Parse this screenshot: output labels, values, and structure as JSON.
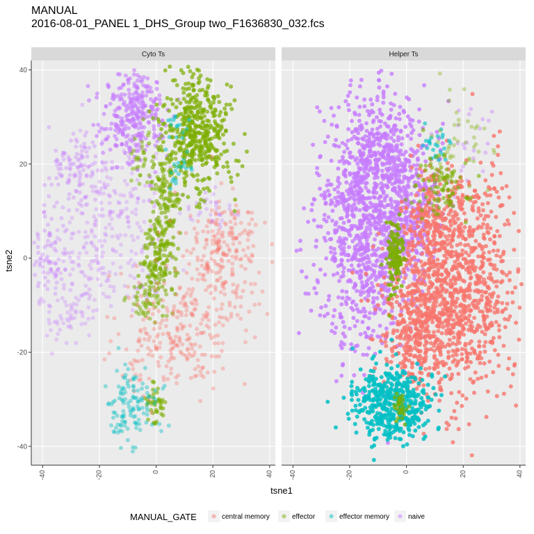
{
  "chart_data": {
    "type": "scatter",
    "title": "MANUAL",
    "subtitle": "2016-08-01_PANEL 1_DHS_Group two_F1636830_032.fcs",
    "xlabel": "tsne1",
    "ylabel": "tsne2",
    "xlim": [
      -44,
      42
    ],
    "ylim": [
      -44,
      42
    ],
    "x_ticks": [
      "-40",
      "-20",
      "0",
      "20",
      "40"
    ],
    "y_ticks": [
      "-40",
      "-20",
      "0",
      "20",
      "40"
    ],
    "grid": true,
    "legend_title": "MANUAL_GATE",
    "legend_position": "bottom",
    "series": [
      {
        "name": "central memory",
        "color": "#F8766D"
      },
      {
        "name": "effector",
        "color": "#7CAE00"
      },
      {
        "name": "effector memory",
        "color": "#00BFC4"
      },
      {
        "name": "naive",
        "color": "#C77CFF"
      }
    ],
    "panels": [
      {
        "label": "Cyto Ts",
        "clusters": [
          {
            "series": "naive",
            "cx": -8,
            "cy": 30,
            "sx": 6,
            "sy": 5,
            "n": 300,
            "alpha": 0.6
          },
          {
            "series": "naive",
            "cx": -28,
            "cy": 18,
            "sx": 5,
            "sy": 4,
            "n": 120,
            "alpha": 0.35
          },
          {
            "series": "naive",
            "cx": -38,
            "cy": 0,
            "sx": 3,
            "sy": 5,
            "n": 70,
            "alpha": 0.35
          },
          {
            "series": "naive",
            "cx": -25,
            "cy": 0,
            "sx": 6,
            "sy": 6,
            "n": 110,
            "alpha": 0.3
          },
          {
            "series": "naive",
            "cx": -30,
            "cy": -12,
            "sx": 5,
            "sy": 3,
            "n": 50,
            "alpha": 0.3
          },
          {
            "series": "naive",
            "cx": -12,
            "cy": 12,
            "sx": 7,
            "sy": 7,
            "n": 120,
            "alpha": 0.3
          },
          {
            "series": "naive",
            "cx": -5,
            "cy": -3,
            "sx": 5,
            "sy": 4,
            "n": 35,
            "alpha": 0.3
          },
          {
            "series": "naive",
            "cx": 20,
            "cy": 10,
            "sx": 5,
            "sy": 2,
            "n": 35,
            "alpha": 0.3
          },
          {
            "series": "effector",
            "cx": 14,
            "cy": 27,
            "sx": 6,
            "sy": 6,
            "n": 450,
            "alpha": 0.7
          },
          {
            "series": "effector",
            "cx": 4,
            "cy": 14,
            "sx": 2.5,
            "sy": 6,
            "n": 120,
            "alpha": 0.6
          },
          {
            "series": "effector",
            "cx": 1,
            "cy": 0,
            "sx": 3,
            "sy": 5,
            "n": 140,
            "alpha": 0.6
          },
          {
            "series": "effector",
            "cx": -4,
            "cy": -9,
            "sx": 3,
            "sy": 2,
            "n": 50,
            "alpha": 0.5
          },
          {
            "series": "effector",
            "cx": 0,
            "cy": -31,
            "sx": 2,
            "sy": 2,
            "n": 40,
            "alpha": 0.6
          },
          {
            "series": "effector",
            "cx": -5,
            "cy": 22,
            "sx": 2,
            "sy": 4,
            "n": 30,
            "alpha": 0.5
          },
          {
            "series": "central memory",
            "cx": 22,
            "cy": -2,
            "sx": 8,
            "sy": 7,
            "n": 200,
            "alpha": 0.35
          },
          {
            "series": "central memory",
            "cx": 5,
            "cy": -17,
            "sx": 10,
            "sy": 6,
            "n": 220,
            "alpha": 0.35
          },
          {
            "series": "central memory",
            "cx": 25,
            "cy": 6,
            "sx": 6,
            "sy": 3,
            "n": 60,
            "alpha": 0.35
          },
          {
            "series": "effector memory",
            "cx": -8,
            "cy": -31,
            "sx": 5,
            "sy": 4,
            "n": 120,
            "alpha": 0.4
          },
          {
            "series": "effector memory",
            "cx": 8,
            "cy": 28,
            "sx": 2,
            "sy": 1.5,
            "n": 15,
            "alpha": 0.5
          },
          {
            "series": "effector memory",
            "cx": 8,
            "cy": 19,
            "sx": 3,
            "sy": 2,
            "n": 20,
            "alpha": 0.5
          }
        ]
      },
      {
        "label": "Helper Ts",
        "clusters": [
          {
            "series": "naive",
            "cx": -14,
            "cy": 5,
            "sx": 9,
            "sy": 12,
            "n": 900,
            "alpha": 0.8
          },
          {
            "series": "naive",
            "cx": -9,
            "cy": 24,
            "sx": 7,
            "sy": 7,
            "n": 300,
            "alpha": 0.8
          },
          {
            "series": "naive",
            "cx": 2,
            "cy": 10,
            "sx": 5,
            "sy": 7,
            "n": 250,
            "alpha": 0.8
          },
          {
            "series": "naive",
            "cx": 21,
            "cy": 23,
            "sx": 5,
            "sy": 5,
            "n": 25,
            "alpha": 0.4
          },
          {
            "series": "central memory",
            "cx": 18,
            "cy": -6,
            "sx": 10,
            "sy": 12,
            "n": 900,
            "alpha": 0.8
          },
          {
            "series": "central memory",
            "cx": 4,
            "cy": -14,
            "sx": 8,
            "sy": 8,
            "n": 400,
            "alpha": 0.8
          },
          {
            "series": "central memory",
            "cx": 10,
            "cy": 8,
            "sx": 5,
            "sy": 5,
            "n": 150,
            "alpha": 0.8
          },
          {
            "series": "effector memory",
            "cx": -5,
            "cy": -31,
            "sx": 7,
            "sy": 4,
            "n": 450,
            "alpha": 0.85
          },
          {
            "series": "effector memory",
            "cx": 10,
            "cy": 24,
            "sx": 3,
            "sy": 2,
            "n": 25,
            "alpha": 0.6
          },
          {
            "series": "effector",
            "cx": -4,
            "cy": 0,
            "sx": 1.6,
            "sy": 4,
            "n": 120,
            "alpha": 0.8
          },
          {
            "series": "effector",
            "cx": 12,
            "cy": 15,
            "sx": 5,
            "sy": 4,
            "n": 90,
            "alpha": 0.6
          },
          {
            "series": "effector",
            "cx": 20,
            "cy": 24,
            "sx": 6,
            "sy": 5,
            "n": 40,
            "alpha": 0.35
          },
          {
            "series": "effector",
            "cx": -2,
            "cy": -32,
            "sx": 1.2,
            "sy": 1.5,
            "n": 30,
            "alpha": 0.7
          }
        ]
      }
    ]
  }
}
